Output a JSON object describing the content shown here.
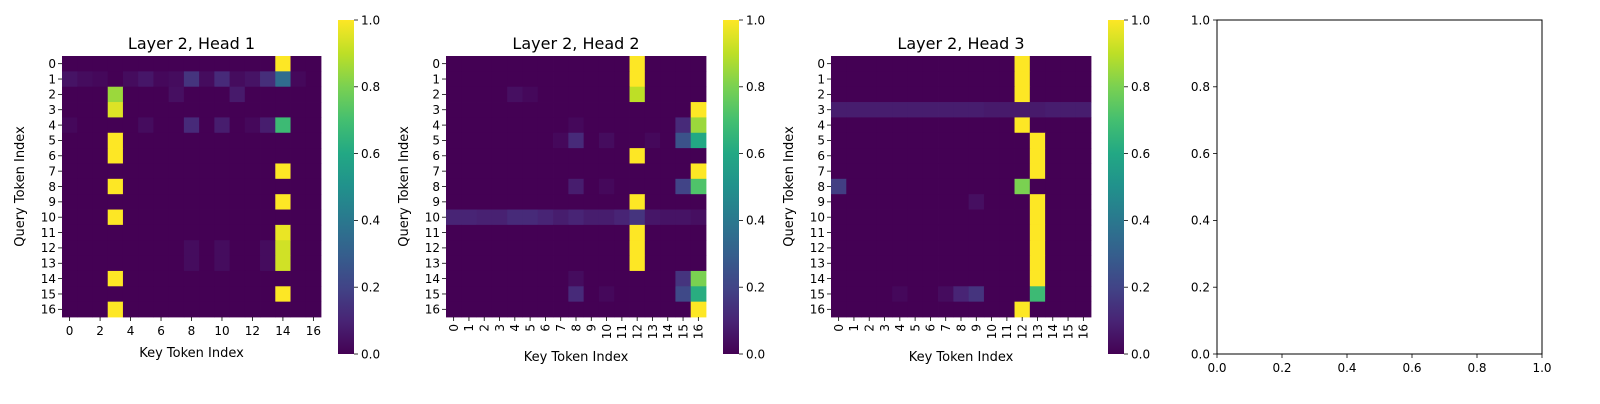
{
  "chart_data": [
    {
      "type": "heatmap",
      "title": "Layer 2, Head 1",
      "xlabel": "Key Token Index",
      "ylabel": "Query Token Index",
      "x_ticks": [
        "0",
        "2",
        "4",
        "6",
        "8",
        "10",
        "12",
        "14",
        "16"
      ],
      "y_ticks": [
        "0",
        "1",
        "2",
        "3",
        "4",
        "5",
        "6",
        "7",
        "8",
        "9",
        "10",
        "11",
        "12",
        "13",
        "14",
        "15",
        "16"
      ],
      "colorbar_ticks": [
        "0.0",
        "0.2",
        "0.4",
        "0.6",
        "0.8",
        "1.0"
      ],
      "colormap": "viridis",
      "vmin": 0,
      "vmax": 1,
      "matrix": [
        [
          0,
          0,
          0,
          0,
          0,
          0,
          0,
          0,
          0,
          0,
          0,
          0,
          0,
          0,
          1,
          0,
          0
        ],
        [
          0.05,
          0.03,
          0.02,
          0,
          0.03,
          0.06,
          0.02,
          0.03,
          0.15,
          0.03,
          0.12,
          0.03,
          0.05,
          0.13,
          0.35,
          0.02,
          0
        ],
        [
          0,
          0,
          0,
          0.85,
          0,
          0,
          0,
          0.04,
          0,
          0,
          0,
          0.07,
          0,
          0,
          0,
          0,
          0
        ],
        [
          0,
          0,
          0,
          0.95,
          0,
          0,
          0,
          0,
          0,
          0,
          0,
          0,
          0,
          0,
          0,
          0,
          0
        ],
        [
          0.02,
          0,
          0,
          0,
          0,
          0.03,
          0,
          0,
          0.12,
          0,
          0.08,
          0,
          0.02,
          0.08,
          0.68,
          0,
          0
        ],
        [
          0,
          0,
          0,
          1,
          0,
          0,
          0,
          0,
          0,
          0,
          0,
          0,
          0,
          0,
          0,
          0,
          0
        ],
        [
          0,
          0,
          0,
          1,
          0,
          0,
          0,
          0,
          0,
          0,
          0,
          0,
          0,
          0,
          0,
          0,
          0
        ],
        [
          0,
          0,
          0,
          0,
          0,
          0,
          0,
          0,
          0,
          0,
          0,
          0,
          0,
          0,
          1,
          0,
          0
        ],
        [
          0,
          0,
          0,
          1,
          0,
          0,
          0,
          0,
          0,
          0,
          0,
          0,
          0,
          0,
          0,
          0,
          0
        ],
        [
          0,
          0,
          0,
          0,
          0,
          0,
          0,
          0,
          0,
          0,
          0,
          0,
          0,
          0,
          1,
          0,
          0
        ],
        [
          0,
          0,
          0,
          1,
          0,
          0,
          0,
          0,
          0,
          0,
          0,
          0,
          0,
          0,
          0,
          0,
          0
        ],
        [
          0,
          0,
          0,
          0,
          0,
          0,
          0,
          0,
          0,
          0,
          0,
          0,
          0,
          0,
          0.97,
          0,
          0
        ],
        [
          0,
          0,
          0,
          0,
          0,
          0,
          0,
          0,
          0.03,
          0,
          0.03,
          0,
          0,
          0.03,
          0.93,
          0,
          0
        ],
        [
          0,
          0,
          0,
          0,
          0,
          0,
          0,
          0,
          0.03,
          0,
          0.03,
          0,
          0,
          0.03,
          0.93,
          0,
          0
        ],
        [
          0,
          0,
          0,
          1,
          0,
          0,
          0,
          0,
          0,
          0,
          0,
          0,
          0,
          0,
          0,
          0,
          0
        ],
        [
          0,
          0,
          0,
          0,
          0,
          0,
          0,
          0,
          0,
          0,
          0,
          0,
          0,
          0,
          1,
          0,
          0
        ],
        [
          0,
          0,
          0,
          1,
          0,
          0,
          0,
          0,
          0,
          0,
          0,
          0,
          0,
          0,
          0,
          0,
          0
        ]
      ]
    },
    {
      "type": "heatmap",
      "title": "Layer 2, Head 2",
      "xlabel": "Key Token Index",
      "ylabel": "Query Token Index",
      "x_ticks": [
        "0",
        "1",
        "2",
        "3",
        "4",
        "5",
        "6",
        "7",
        "8",
        "9",
        "10",
        "11",
        "12",
        "13",
        "14",
        "15",
        "16"
      ],
      "y_ticks": [
        "0",
        "1",
        "2",
        "3",
        "4",
        "5",
        "6",
        "7",
        "8",
        "9",
        "10",
        "11",
        "12",
        "13",
        "14",
        "15",
        "16"
      ],
      "colorbar_ticks": [
        "0.0",
        "0.2",
        "0.4",
        "0.6",
        "0.8",
        "1.0"
      ],
      "colormap": "viridis",
      "vmin": 0,
      "vmax": 1,
      "matrix": [
        [
          0,
          0,
          0,
          0,
          0,
          0,
          0,
          0,
          0,
          0,
          0,
          0,
          1,
          0,
          0,
          0,
          0
        ],
        [
          0,
          0,
          0,
          0,
          0,
          0,
          0,
          0,
          0,
          0,
          0,
          0,
          1,
          0,
          0,
          0,
          0
        ],
        [
          0,
          0,
          0,
          0,
          0.04,
          0.02,
          0,
          0,
          0,
          0,
          0,
          0,
          0.9,
          0,
          0,
          0,
          0
        ],
        [
          0,
          0,
          0,
          0,
          0,
          0,
          0,
          0,
          0,
          0,
          0,
          0,
          0,
          0,
          0,
          0,
          1
        ],
        [
          0,
          0,
          0,
          0,
          0,
          0,
          0,
          0,
          0.02,
          0,
          0,
          0,
          0,
          0,
          0,
          0.12,
          0.85
        ],
        [
          0,
          0,
          0,
          0,
          0,
          0,
          0,
          0.02,
          0.12,
          0,
          0.03,
          0,
          0,
          0.02,
          0,
          0.25,
          0.6
        ],
        [
          0,
          0,
          0,
          0,
          0,
          0,
          0,
          0,
          0,
          0,
          0,
          0,
          1,
          0,
          0,
          0,
          0
        ],
        [
          0,
          0,
          0,
          0,
          0,
          0,
          0,
          0,
          0,
          0,
          0,
          0,
          0,
          0,
          0,
          0,
          1
        ],
        [
          0,
          0,
          0,
          0,
          0,
          0,
          0,
          0,
          0.08,
          0,
          0.02,
          0,
          0,
          0,
          0,
          0.2,
          0.72
        ],
        [
          0,
          0,
          0,
          0,
          0,
          0,
          0,
          0,
          0,
          0,
          0,
          0,
          1,
          0,
          0,
          0,
          0
        ],
        [
          0.1,
          0.1,
          0.09,
          0.09,
          0.12,
          0.12,
          0.1,
          0.08,
          0.1,
          0.08,
          0.08,
          0.1,
          0.15,
          0.06,
          0.05,
          0.05,
          0.04
        ],
        [
          0,
          0,
          0,
          0,
          0,
          0,
          0,
          0,
          0,
          0,
          0,
          0,
          1,
          0,
          0,
          0,
          0
        ],
        [
          0,
          0,
          0,
          0,
          0,
          0,
          0,
          0,
          0,
          0,
          0,
          0,
          1,
          0,
          0,
          0,
          0
        ],
        [
          0,
          0,
          0,
          0,
          0,
          0,
          0,
          0,
          0,
          0,
          0,
          0,
          1,
          0,
          0,
          0,
          0
        ],
        [
          0,
          0,
          0,
          0,
          0,
          0,
          0,
          0,
          0.03,
          0,
          0,
          0,
          0,
          0,
          0,
          0.15,
          0.8
        ],
        [
          0,
          0,
          0,
          0,
          0,
          0,
          0,
          0,
          0.12,
          0,
          0.02,
          0,
          0,
          0,
          0,
          0.22,
          0.62
        ],
        [
          0,
          0,
          0,
          0,
          0,
          0,
          0,
          0,
          0,
          0,
          0,
          0,
          0,
          0,
          0,
          0,
          1
        ]
      ]
    },
    {
      "type": "heatmap",
      "title": "Layer 2, Head 3",
      "xlabel": "Key Token Index",
      "ylabel": "Query Token Index",
      "x_ticks": [
        "0",
        "1",
        "2",
        "3",
        "4",
        "5",
        "6",
        "7",
        "8",
        "9",
        "10",
        "11",
        "12",
        "13",
        "14",
        "15",
        "16"
      ],
      "y_ticks": [
        "0",
        "1",
        "2",
        "3",
        "4",
        "5",
        "6",
        "7",
        "8",
        "9",
        "10",
        "11",
        "12",
        "13",
        "14",
        "15",
        "16"
      ],
      "colorbar_ticks": [
        "0.0",
        "0.2",
        "0.4",
        "0.6",
        "0.8",
        "1.0"
      ],
      "colormap": "viridis",
      "vmin": 0,
      "vmax": 1,
      "matrix": [
        [
          0,
          0,
          0,
          0,
          0,
          0,
          0,
          0,
          0,
          0,
          0,
          0,
          1,
          0,
          0,
          0,
          0
        ],
        [
          0,
          0,
          0,
          0,
          0,
          0,
          0,
          0,
          0,
          0,
          0,
          0,
          1,
          0,
          0,
          0,
          0
        ],
        [
          0,
          0,
          0,
          0,
          0,
          0,
          0,
          0,
          0,
          0,
          0,
          0,
          1,
          0,
          0,
          0,
          0
        ],
        [
          0.08,
          0.08,
          0.08,
          0.08,
          0.08,
          0.08,
          0.08,
          0.08,
          0.08,
          0.08,
          0.07,
          0.07,
          0.07,
          0.07,
          0.08,
          0.08,
          0.08
        ],
        [
          0,
          0,
          0,
          0,
          0,
          0,
          0,
          0,
          0,
          0,
          0,
          0,
          1,
          0,
          0,
          0,
          0
        ],
        [
          0,
          0,
          0,
          0,
          0,
          0,
          0,
          0,
          0,
          0,
          0,
          0,
          0,
          1,
          0,
          0,
          0
        ],
        [
          0,
          0,
          0,
          0,
          0,
          0,
          0,
          0,
          0,
          0,
          0,
          0,
          0,
          1,
          0,
          0,
          0
        ],
        [
          0,
          0,
          0,
          0,
          0,
          0,
          0,
          0,
          0,
          0,
          0,
          0,
          0,
          1,
          0,
          0,
          0
        ],
        [
          0.18,
          0,
          0,
          0,
          0,
          0,
          0,
          0,
          0,
          0,
          0,
          0,
          0.8,
          0,
          0,
          0,
          0
        ],
        [
          0,
          0,
          0,
          0,
          0,
          0,
          0,
          0,
          0,
          0.04,
          0,
          0,
          0,
          1,
          0,
          0,
          0
        ],
        [
          0,
          0,
          0,
          0,
          0,
          0,
          0,
          0,
          0,
          0,
          0,
          0,
          0,
          1,
          0,
          0,
          0
        ],
        [
          0,
          0,
          0,
          0,
          0,
          0,
          0,
          0,
          0,
          0,
          0,
          0,
          0,
          1,
          0,
          0,
          0
        ],
        [
          0,
          0,
          0,
          0,
          0,
          0,
          0,
          0,
          0,
          0,
          0,
          0,
          0,
          1,
          0,
          0,
          0
        ],
        [
          0,
          0,
          0,
          0,
          0,
          0,
          0,
          0,
          0,
          0,
          0,
          0,
          0,
          1,
          0,
          0,
          0
        ],
        [
          0,
          0,
          0,
          0,
          0,
          0,
          0,
          0,
          0,
          0,
          0,
          0,
          0,
          1,
          0,
          0,
          0
        ],
        [
          0,
          0,
          0,
          0,
          0.02,
          0,
          0,
          0.03,
          0.1,
          0.15,
          0,
          0,
          0,
          0.68,
          0,
          0,
          0
        ],
        [
          0,
          0,
          0,
          0,
          0,
          0,
          0,
          0,
          0,
          0,
          0,
          0,
          1,
          0,
          0,
          0,
          0
        ]
      ]
    },
    {
      "type": "empty",
      "x_ticks": [
        "0.0",
        "0.2",
        "0.4",
        "0.6",
        "0.8",
        "1.0"
      ],
      "y_ticks": [
        "0.0",
        "0.2",
        "0.4",
        "0.6",
        "0.8",
        "1.0"
      ],
      "xlim": [
        0,
        1
      ],
      "ylim": [
        0,
        1
      ]
    }
  ]
}
